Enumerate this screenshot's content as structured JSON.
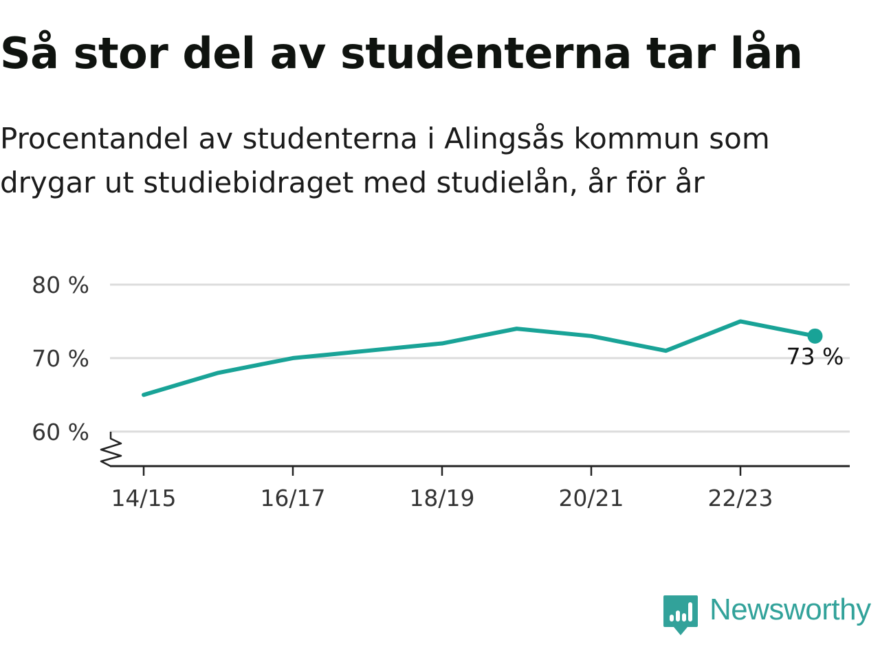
{
  "header": {
    "title": "Så stor del av studenterna tar lån",
    "subtitle": "Procentandel av studenterna i Alingsås kommun som drygar ut studiebidraget med studielån, år för år"
  },
  "chart_data": {
    "type": "line",
    "x": [
      "14/15",
      "15/16",
      "16/17",
      "17/18",
      "18/19",
      "19/20",
      "20/21",
      "21/22",
      "22/23",
      "23/24"
    ],
    "series": [
      {
        "values": [
          65,
          68,
          70,
          71,
          72,
          74,
          73,
          71,
          75,
          73
        ]
      }
    ],
    "x_tick_labels": [
      "14/15",
      "16/17",
      "18/19",
      "20/21",
      "22/23"
    ],
    "y_ticks": [
      60,
      70,
      80
    ],
    "y_tick_labels": [
      "60 %",
      "70 %",
      "80 %"
    ],
    "ylim": [
      55.3,
      80
    ],
    "y_axis_break": true,
    "grid": "horizontal",
    "end_label": "73 %",
    "line_color": "#19a397",
    "grid_color": "#dcdcdc",
    "axis_color": "#222222"
  },
  "branding": {
    "logo_text": "Newsworthy",
    "logo_icon": "newsworthy-chart-bubble-icon",
    "color": "#32a29a"
  }
}
